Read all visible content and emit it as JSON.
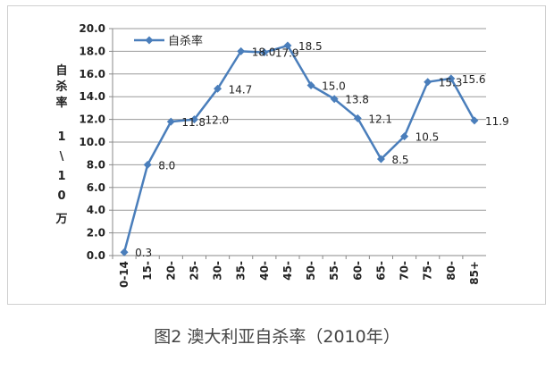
{
  "chart_data": {
    "type": "line",
    "categories": [
      "0-14",
      "15-",
      "20-",
      "25-",
      "30-",
      "35-",
      "40-",
      "45-",
      "50-",
      "55-",
      "60-",
      "65-",
      "70-",
      "75-",
      "80-",
      "85+"
    ],
    "series": [
      {
        "name": "自杀率",
        "values": [
          0.3,
          8.0,
          11.8,
          12.0,
          14.7,
          18.0,
          17.9,
          18.5,
          15.0,
          13.8,
          12.1,
          8.5,
          10.5,
          15.3,
          15.6,
          11.9
        ],
        "labels": [
          "0.3",
          "8.0",
          "11.8",
          "12.0",
          "14.7",
          "18.0",
          "17.9",
          "18.5",
          "15.0",
          "13.8",
          "12.1",
          "8.5",
          "10.5",
          "15.3",
          "15.6",
          "11.9"
        ]
      }
    ],
    "yticks": [
      "0.0",
      "2.0",
      "4.0",
      "6.0",
      "8.0",
      "10.0",
      "12.0",
      "14.0",
      "16.0",
      "18.0",
      "20.0"
    ],
    "ylim": [
      0,
      20
    ],
    "ylabel_chars": [
      "自",
      "杀",
      "率",
      "",
      "1",
      "\\",
      "1",
      "0",
      "万"
    ],
    "grid": true,
    "legend": "top-left",
    "color": "#4a7ebb"
  },
  "caption": "图2 澳大利亚自杀率（2010年）"
}
